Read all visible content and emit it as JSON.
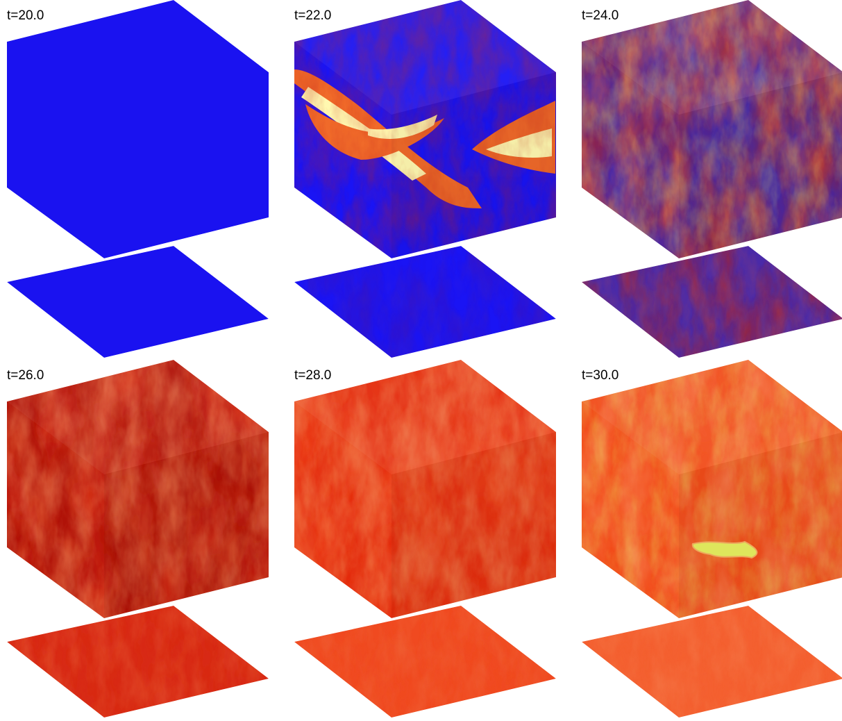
{
  "panels": [
    {
      "label": "t=20.0",
      "state": "uniform-cold",
      "palette": {
        "base": "#1a12f0",
        "mid": "#1a12f0",
        "hot": "#1a12f0",
        "hottest": "#1a12f0"
      }
    },
    {
      "label": "t=22.0",
      "state": "sparse-hot-filaments",
      "palette": {
        "base": "#1a14f4",
        "mid": "#c0201a",
        "hot": "#f06a2a",
        "hottest": "#fff8b0"
      }
    },
    {
      "label": "t=24.0",
      "state": "mixed-purple-red",
      "palette": {
        "base": "#4a2aa8",
        "mid": "#b82010",
        "hot": "#f06030",
        "hottest": "#f0f070"
      }
    },
    {
      "label": "t=26.0",
      "state": "dark-red-with-orange-streaks",
      "palette": {
        "base": "#b01208",
        "mid": "#d82a14",
        "hot": "#f07a4a",
        "hottest": "#f4a070"
      }
    },
    {
      "label": "t=28.0",
      "state": "red-orange",
      "palette": {
        "base": "#e42a0c",
        "mid": "#f04a20",
        "hot": "#f07e50",
        "hottest": "#f8b070"
      }
    },
    {
      "label": "t=30.0",
      "state": "uniform-orange-with-hot-spot",
      "palette": {
        "base": "#f24c1a",
        "mid": "#f46030",
        "hot": "#f89060",
        "hottest": "#e8f060"
      }
    }
  ]
}
